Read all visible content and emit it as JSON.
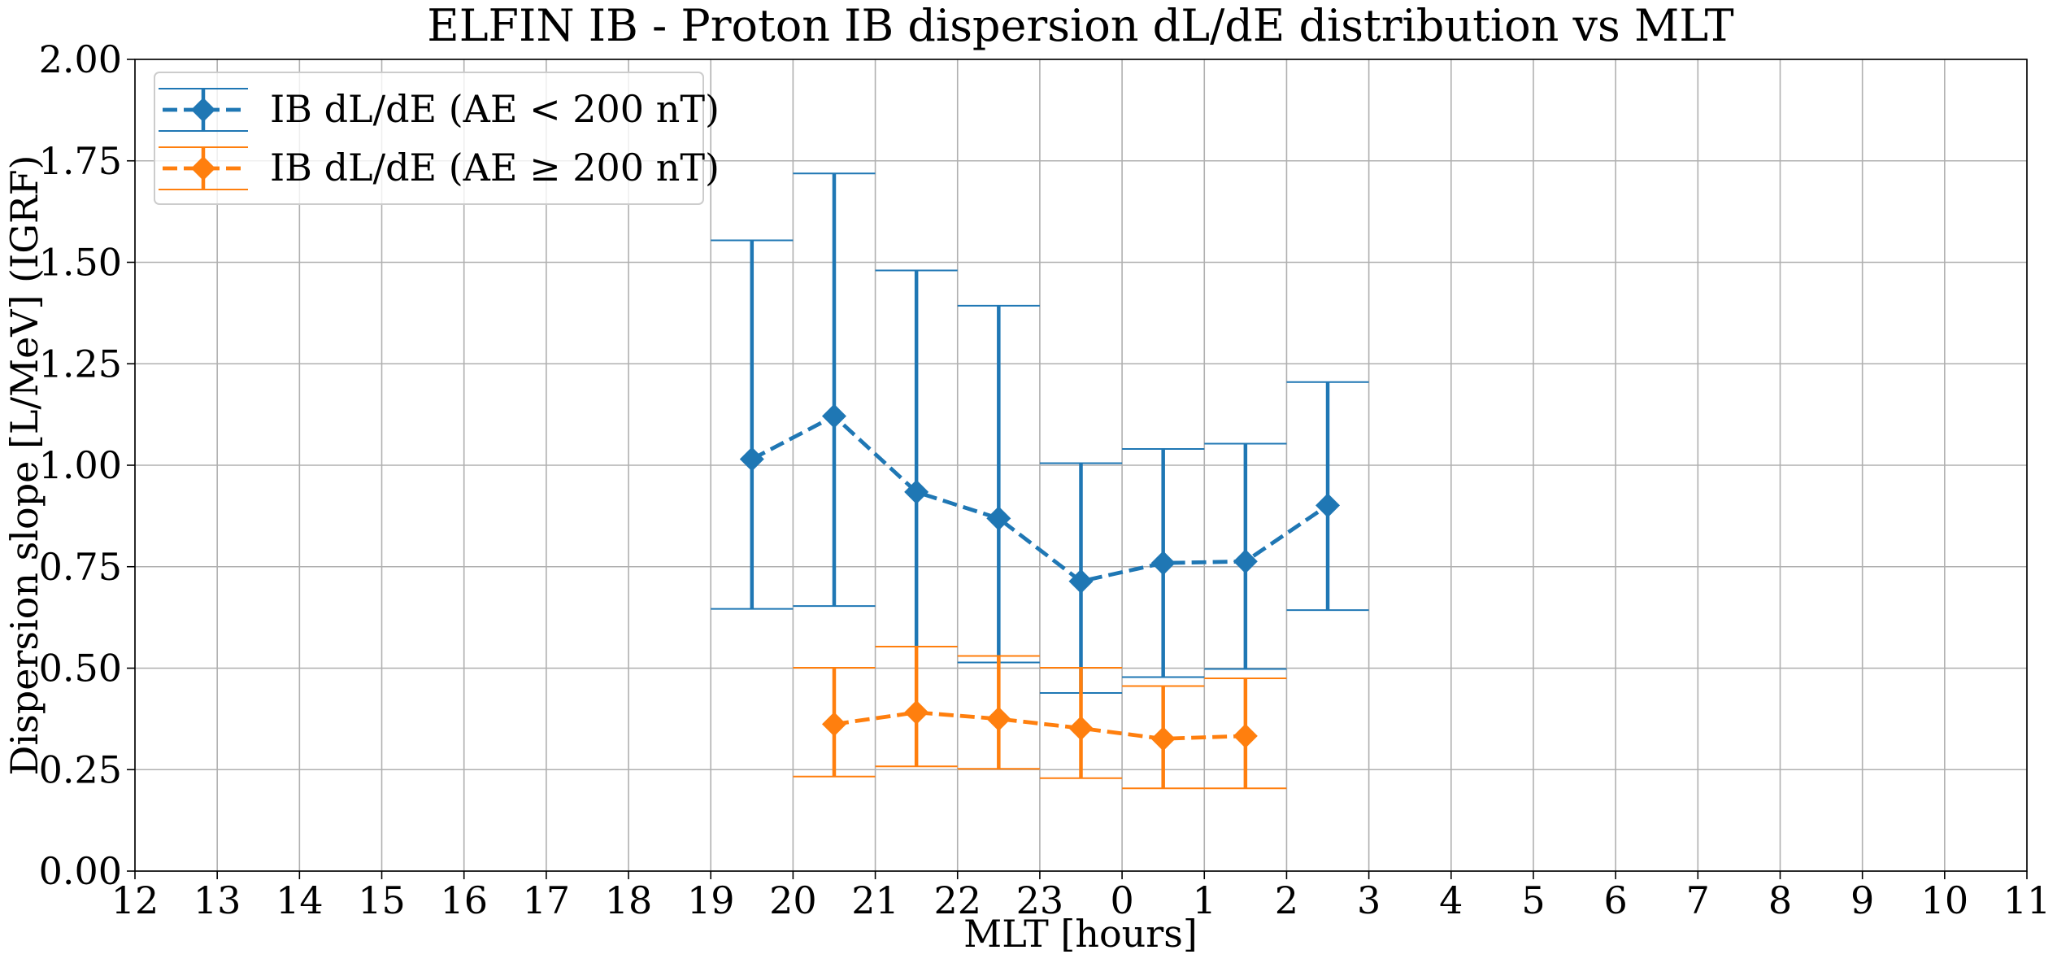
{
  "chart_data": {
    "type": "errorbar",
    "title": "ELFIN IB - Proton IB dispersion dL/dE distribution vs MLT",
    "xlabel": "MLT [hours]",
    "ylabel": "Dispersion slope [L/MeV] (IGRF)",
    "xlim": [
      12,
      35
    ],
    "xticks": [
      12,
      13,
      14,
      15,
      16,
      17,
      18,
      19,
      20,
      21,
      22,
      23,
      {
        "value": 24,
        "label": "0"
      },
      {
        "value": 25,
        "label": "1"
      },
      {
        "value": 26,
        "label": "2"
      },
      {
        "value": 27,
        "label": "3"
      },
      {
        "value": 28,
        "label": "4"
      },
      {
        "value": 29,
        "label": "5"
      },
      {
        "value": 30,
        "label": "6"
      },
      {
        "value": 31,
        "label": "7"
      },
      {
        "value": 32,
        "label": "8"
      },
      {
        "value": 33,
        "label": "9"
      },
      {
        "value": 34,
        "label": "10"
      },
      {
        "value": 35,
        "label": "11"
      }
    ],
    "ylim": [
      0,
      2
    ],
    "yticks": [
      {
        "value": 0,
        "label": "0.00"
      },
      {
        "value": 0.25,
        "label": "0.25"
      },
      {
        "value": 0.5,
        "label": "0.50"
      },
      {
        "value": 0.75,
        "label": "0.75"
      },
      {
        "value": 1,
        "label": "1.00"
      },
      {
        "value": 1.25,
        "label": "1.25"
      },
      {
        "value": 1.5,
        "label": "1.50"
      },
      {
        "value": 1.75,
        "label": "1.75"
      },
      {
        "value": 2,
        "label": "2.00"
      }
    ],
    "grid": true,
    "legend": "upper left",
    "series": [
      {
        "name": "IB dL/dE (AE < 200 nT)",
        "color": "#1f77b4",
        "x": [
          19.5,
          20.5,
          21.5,
          22.5,
          23.5,
          24.5,
          25.5,
          26.5
        ],
        "values": [
          1.015,
          1.121,
          0.934,
          0.869,
          0.714,
          0.759,
          0.763,
          0.901
        ],
        "low": [
          0.646,
          0.653,
          0.553,
          0.514,
          0.439,
          0.478,
          0.498,
          0.643
        ],
        "high": [
          1.554,
          1.719,
          1.48,
          1.393,
          1.005,
          1.04,
          1.053,
          1.205
        ]
      },
      {
        "name": "IB dL/dE (AE ≥ 200 nT)",
        "color": "#ff7f0e",
        "x": [
          20.5,
          21.5,
          22.5,
          23.5,
          24.5,
          25.5
        ],
        "values": [
          0.362,
          0.391,
          0.375,
          0.352,
          0.326,
          0.333
        ],
        "low": [
          0.233,
          0.258,
          0.252,
          0.229,
          0.204,
          0.204
        ],
        "high": [
          0.501,
          0.553,
          0.53,
          0.501,
          0.456,
          0.475
        ]
      }
    ]
  }
}
